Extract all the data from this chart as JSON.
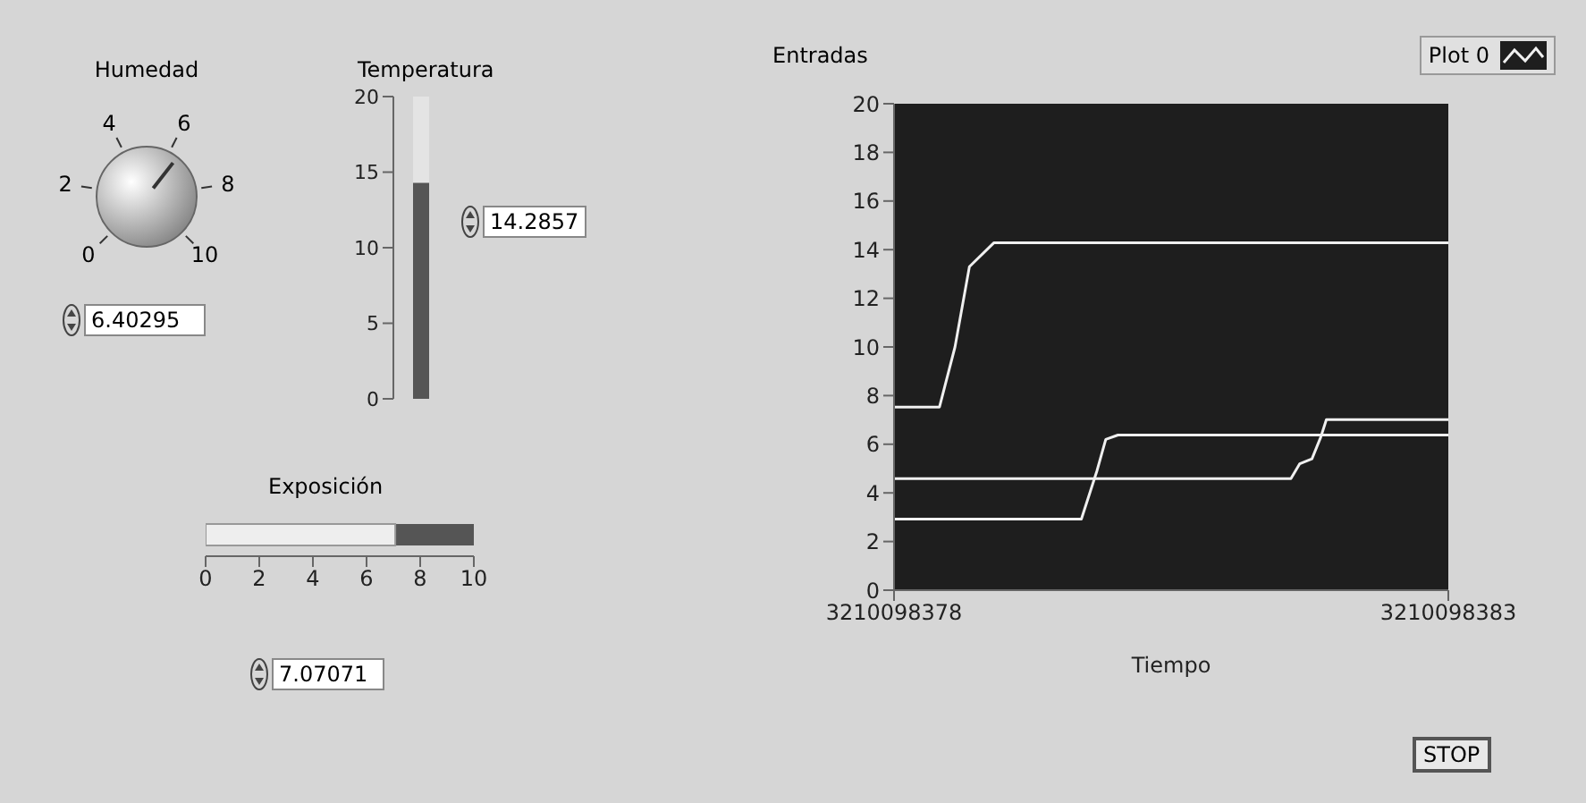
{
  "chart_data": [
    {
      "type": "other",
      "title": "Humedad",
      "values": [
        6.40295
      ],
      "value_labels": [
        "6.40295"
      ],
      "annotations": [
        "0",
        "2",
        "4",
        "6",
        "8",
        "10"
      ]
    },
    {
      "type": "bar",
      "title": "Temperatura",
      "categories": [
        null
      ],
      "values": [
        14.2857
      ],
      "annotations": [
        "14.2857"
      ],
      "color": "#555555",
      "ylim": [
        0,
        20
      ],
      "yticks": [
        0,
        5,
        10,
        15,
        20
      ]
    },
    {
      "type": "bar",
      "orientation": "horizontal",
      "title": "Exposición",
      "categories": [
        null
      ],
      "values": [
        7.07071
      ],
      "annotations": [
        "7.07071"
      ],
      "color": "#eeeeee",
      "xlim": [
        0,
        10
      ],
      "xticks": [
        0,
        2,
        4,
        6,
        8,
        10
      ]
    },
    {
      "type": "line",
      "title": "Entradas",
      "xlabel": "Tiempo",
      "xlim": [
        3210098378,
        3210098383
      ],
      "xticks": [
        3210098378,
        3210098383
      ],
      "ylim": [
        0,
        20
      ],
      "yticks": [
        0,
        2,
        4,
        6,
        8,
        10,
        12,
        14,
        16,
        18,
        20
      ],
      "legend": "top right",
      "annotations": [
        "STOP"
      ],
      "series": [
        {
          "name": "Plot 0",
          "color": "#f0f0f0",
          "x": [
            3210098378,
            3210098378.41,
            3210098378.55,
            3210098378.68,
            3210098378.9,
            3210098383
          ],
          "values": [
            7.53,
            7.53,
            10,
            13.3,
            14.28,
            14.28
          ]
        },
        {
          "color": "#f0f0f0",
          "x": [
            3210098378,
            3210098379.69,
            3210098379.83,
            3210098379.91,
            3210098380.02,
            3210098383
          ],
          "values": [
            2.92,
            2.92,
            4.9,
            6.2,
            6.38,
            6.38
          ]
        },
        {
          "color": "#f0f0f0",
          "x": [
            3210098378,
            3210098381.58,
            3210098381.66,
            3210098381.77,
            3210098381.85,
            3210098381.9,
            3210098383
          ],
          "values": [
            4.59,
            4.59,
            5.2,
            5.4,
            6.3,
            7.01,
            7.01
          ]
        }
      ]
    }
  ]
}
